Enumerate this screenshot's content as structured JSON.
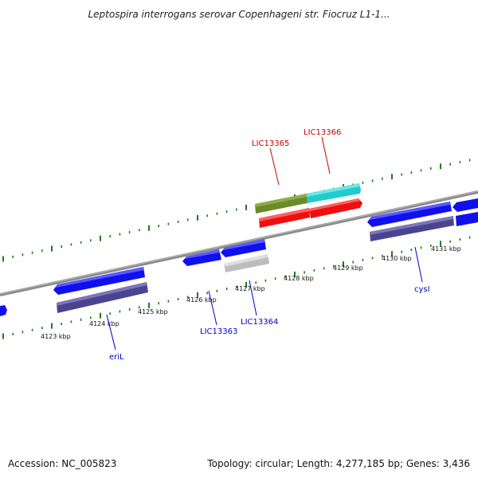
{
  "title": "Leptospira interrogans serovar Copenhageni str. Fiocruz L1-1...",
  "scale_labels": [
    "4123 kbp",
    "4124 kbp",
    "4125 kbp",
    "4126 kbp",
    "4127 kbp",
    "4128 kbp",
    "4129 kbp",
    "4130 kbp",
    "4131 kbp"
  ],
  "gene_labels": [
    {
      "text": "LIC13365",
      "color": "#cc0000"
    },
    {
      "text": "LIC13366",
      "color": "#cc0000"
    },
    {
      "text": "LIC13363",
      "color": "#0000cc"
    },
    {
      "text": "LIC13364",
      "color": "#0000cc"
    },
    {
      "text": "eriL",
      "color": "#0000cc"
    },
    {
      "text": "cysI",
      "color": "#0000cc"
    }
  ],
  "footer": {
    "accession": "Accession: NC_005823",
    "summary": "Topology: circular; Length: 4,277,185 bp; Genes: 3,436"
  },
  "colors": {
    "gene_blue": "#1010ee",
    "gene_darkblue": "#4a4490",
    "gene_red": "#ee1010",
    "gene_olive": "#6b8a2a",
    "gene_cyan": "#22cccc",
    "gene_grey": "#bdbdbd",
    "tick_green": "#1f7a1f",
    "backbone": "#8a8a8a"
  }
}
